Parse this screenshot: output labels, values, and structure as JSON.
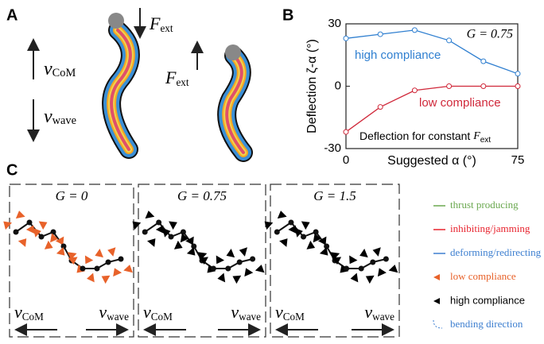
{
  "panels": {
    "a": "A",
    "b": "B",
    "c": "C"
  },
  "panel_a": {
    "v_com": {
      "symbol": "v",
      "subscript": "CoM"
    },
    "v_wave": {
      "symbol": "v",
      "subscript": "wave"
    },
    "f_ext_left": {
      "symbol": "F",
      "subscript": "ext"
    },
    "f_ext_right": {
      "symbol": "F",
      "subscript": "ext"
    }
  },
  "chart_data": {
    "type": "line",
    "xlabel": "Suggested α (°)",
    "ylabel": "Deflection ζ-α (°)",
    "x": [
      0,
      15,
      30,
      45,
      60,
      75
    ],
    "xlim": [
      0,
      75
    ],
    "xticks": [
      0,
      75
    ],
    "ylim": [
      -30,
      30
    ],
    "yticks": [
      -30,
      0,
      30
    ],
    "series": [
      {
        "name": "high compliance",
        "color": "#2f7fd0",
        "values": [
          23,
          25,
          27,
          22,
          12,
          6
        ]
      },
      {
        "name": "low compliance",
        "color": "#d0283a",
        "values": [
          -22,
          -10,
          -2,
          0,
          0,
          0
        ]
      }
    ],
    "annotations": {
      "g_label": "G = 0.75",
      "note": {
        "text": "Deflection for constant ",
        "symbol": "F",
        "subscript": "ext"
      }
    }
  },
  "panel_c": {
    "boxes": [
      {
        "label": "G = 0"
      },
      {
        "label": "G = 0.75"
      },
      {
        "label": "G = 1.5"
      }
    ],
    "v_com": {
      "symbol": "v",
      "subscript": "CoM"
    },
    "v_wave": {
      "symbol": "v",
      "subscript": "wave"
    },
    "legend": [
      {
        "label": "thrust producing",
        "color": "#6aa84f"
      },
      {
        "label": "inhibiting/jamming",
        "color": "#e8232e"
      },
      {
        "label": "deforming/redirecting",
        "color": "#3d7fd0"
      },
      {
        "label": "low compliance",
        "color": "#e8622a"
      },
      {
        "label": "high compliance",
        "color": "#000000"
      },
      {
        "label": "bending direction",
        "color": "#3d7fd0"
      }
    ]
  }
}
